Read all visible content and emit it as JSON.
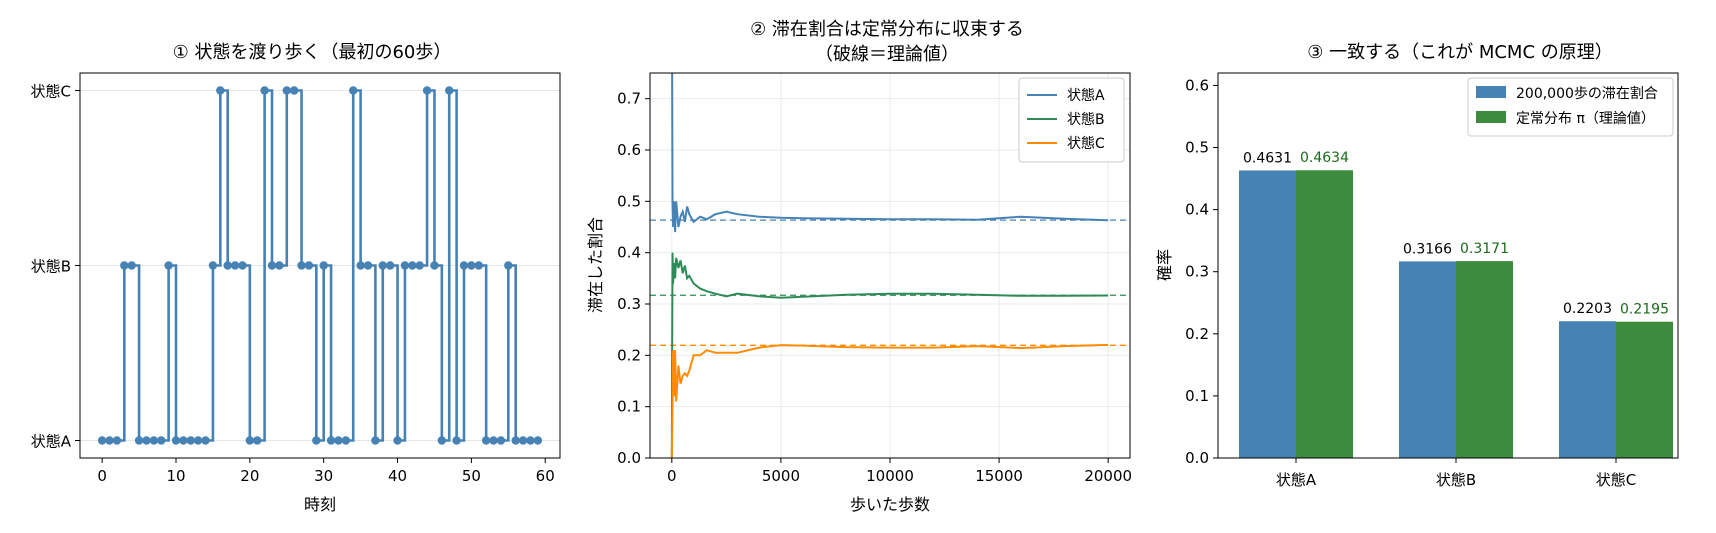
{
  "chart_data": [
    {
      "type": "line",
      "title": "① 状態を渡り歩く（最初の60歩）",
      "xlabel": "時刻",
      "ylabel": "",
      "xlim": [
        -3,
        62
      ],
      "ylim": [
        -0.1,
        2.1
      ],
      "xticks": [
        0,
        10,
        20,
        30,
        40,
        50,
        60
      ],
      "yticks": [
        0,
        1,
        2
      ],
      "ytick_labels": [
        "状態A",
        "状態B",
        "状態C"
      ],
      "grid": "y",
      "series": [
        {
          "color": "#4682b4",
          "step": "post",
          "x": [
            0,
            1,
            2,
            3,
            4,
            5,
            6,
            7,
            8,
            9,
            10,
            11,
            12,
            13,
            14,
            15,
            16,
            17,
            18,
            19,
            20,
            21,
            22,
            23,
            24,
            25,
            26,
            27,
            28,
            29,
            30,
            31,
            32,
            33,
            34,
            35,
            36,
            37,
            38,
            39,
            40,
            41,
            42,
            43,
            44,
            45,
            46,
            47,
            48,
            49,
            50,
            51,
            52,
            53,
            54,
            55,
            56,
            57,
            58,
            59
          ],
          "values": [
            0,
            0,
            0,
            1,
            1,
            0,
            0,
            0,
            0,
            1,
            0,
            0,
            0,
            0,
            0,
            1,
            2,
            1,
            1,
            1,
            0,
            0,
            2,
            1,
            1,
            2,
            2,
            1,
            1,
            0,
            1,
            0,
            0,
            0,
            2,
            1,
            1,
            0,
            1,
            1,
            0,
            1,
            1,
            1,
            2,
            1,
            0,
            2,
            0,
            1,
            1,
            1,
            0,
            0,
            0,
            1,
            0,
            0,
            0,
            0
          ]
        }
      ]
    },
    {
      "type": "line",
      "title": "② 滞在割合は定常分布に収束する",
      "subtitle": "（破線＝理論値）",
      "xlabel": "歩いた歩数",
      "ylabel": "滞在した割合",
      "xlim": [
        -1000,
        21000
      ],
      "ylim": [
        0,
        0.75
      ],
      "xticks": [
        0,
        5000,
        10000,
        15000,
        20000
      ],
      "yticks": [
        0.0,
        0.1,
        0.2,
        0.3,
        0.4,
        0.5,
        0.6,
        0.7
      ],
      "ytick_labels": [
        "0.0",
        "0.1",
        "0.2",
        "0.3",
        "0.4",
        "0.5",
        "0.6",
        "0.7"
      ],
      "grid": "both",
      "legend_position": "top-right",
      "series": [
        {
          "name": "状態A",
          "color": "#4682b4",
          "theory": 0.4634,
          "x": [
            1,
            30,
            60,
            100,
            150,
            200,
            300,
            400,
            500,
            600,
            700,
            800,
            1000,
            1300,
            1600,
            2000,
            2500,
            3000,
            4000,
            5000,
            6000,
            8000,
            10000,
            12000,
            14000,
            16000,
            18000,
            20000
          ],
          "values": [
            1.0,
            0.5,
            0.45,
            0.5,
            0.44,
            0.5,
            0.45,
            0.47,
            0.48,
            0.46,
            0.49,
            0.475,
            0.46,
            0.47,
            0.465,
            0.475,
            0.48,
            0.475,
            0.47,
            0.468,
            0.467,
            0.466,
            0.465,
            0.465,
            0.464,
            0.47,
            0.466,
            0.4631
          ]
        },
        {
          "name": "状態B",
          "color": "#2e8b57",
          "theory": 0.3171,
          "x": [
            1,
            30,
            60,
            100,
            150,
            200,
            300,
            400,
            500,
            600,
            700,
            800,
            1000,
            1300,
            1600,
            2000,
            2500,
            3000,
            4000,
            5000,
            6000,
            8000,
            10000,
            12000,
            14000,
            16000,
            18000,
            20000
          ],
          "values": [
            0.0,
            0.4,
            0.34,
            0.38,
            0.35,
            0.39,
            0.37,
            0.385,
            0.36,
            0.375,
            0.35,
            0.355,
            0.34,
            0.33,
            0.325,
            0.32,
            0.315,
            0.32,
            0.315,
            0.312,
            0.314,
            0.318,
            0.32,
            0.32,
            0.318,
            0.316,
            0.316,
            0.3166
          ]
        },
        {
          "name": "状態C",
          "color": "#ff8c00",
          "theory": 0.2195,
          "x": [
            1,
            30,
            60,
            100,
            150,
            200,
            300,
            400,
            500,
            600,
            700,
            800,
            1000,
            1300,
            1600,
            2000,
            2500,
            3000,
            4000,
            5000,
            6000,
            8000,
            10000,
            12000,
            14000,
            16000,
            18000,
            20000
          ],
          "values": [
            0.0,
            0.1,
            0.21,
            0.12,
            0.21,
            0.11,
            0.18,
            0.145,
            0.16,
            0.165,
            0.16,
            0.17,
            0.2,
            0.2,
            0.21,
            0.205,
            0.205,
            0.205,
            0.215,
            0.22,
            0.219,
            0.216,
            0.215,
            0.215,
            0.218,
            0.214,
            0.218,
            0.2203
          ]
        }
      ]
    },
    {
      "type": "bar",
      "title": "③ 一致する（これが MCMC の原理）",
      "xlabel": "",
      "ylabel": "確率",
      "ylim": [
        0,
        0.62
      ],
      "yticks": [
        0.0,
        0.1,
        0.2,
        0.3,
        0.4,
        0.5,
        0.6
      ],
      "ytick_labels": [
        "0.0",
        "0.1",
        "0.2",
        "0.3",
        "0.4",
        "0.5",
        "0.6"
      ],
      "categories": [
        "状態A",
        "状態B",
        "状態C"
      ],
      "legend_position": "top-right",
      "series": [
        {
          "name": "200,000歩の滞在割合",
          "color": "#4682b4",
          "label_color": "#000000",
          "values": [
            0.4631,
            0.3166,
            0.2203
          ],
          "labels": [
            "0.4631",
            "0.3166",
            "0.2203"
          ]
        },
        {
          "name": "定常分布 π（理論値）",
          "color": "#3d8b3d",
          "label_color": "#1a6b1a",
          "values": [
            0.4634,
            0.3171,
            0.2195
          ],
          "labels": [
            "0.4634",
            "0.3171",
            "0.2195"
          ]
        }
      ]
    }
  ]
}
